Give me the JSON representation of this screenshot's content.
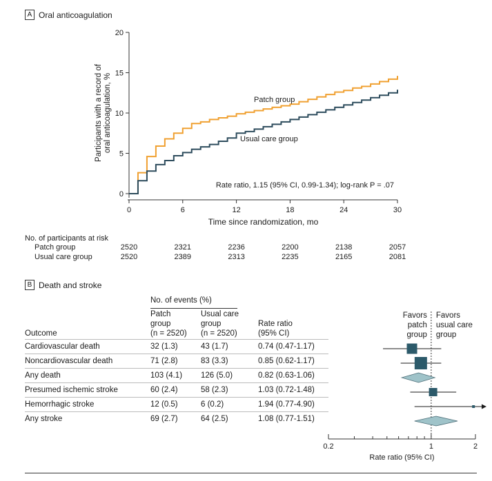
{
  "panel_a": {
    "letter": "A",
    "title": "Oral anticoagulation",
    "chart_data": {
      "type": "line",
      "title": "Oral anticoagulation",
      "xlabel": "Time since randomization, mo",
      "ylabel_lines": [
        "Participants with a record of",
        "oral anticoagulation, %"
      ],
      "xlim": [
        0,
        30
      ],
      "ylim": [
        0,
        20
      ],
      "xticks": [
        0,
        6,
        12,
        18,
        24,
        30
      ],
      "yticks": [
        0,
        5,
        10,
        15,
        20
      ],
      "grid": false,
      "annotation": "Rate ratio, 1.15 (95% CI, 0.99-1.34); log-rank P = .07",
      "series": [
        {
          "name": "Patch group",
          "color": "#f0a030",
          "step": true,
          "x": [
            0,
            1,
            2,
            3,
            4,
            5,
            6,
            7,
            8,
            9,
            10,
            11,
            12,
            13,
            14,
            15,
            16,
            17,
            18,
            19,
            20,
            21,
            22,
            23,
            24,
            25,
            26,
            27,
            28,
            29,
            30
          ],
          "y": [
            0,
            2.6,
            4.6,
            5.9,
            6.8,
            7.5,
            8.1,
            8.7,
            8.9,
            9.2,
            9.4,
            9.6,
            9.9,
            10.1,
            10.3,
            10.5,
            10.7,
            10.9,
            11.1,
            11.4,
            11.7,
            12.0,
            12.3,
            12.6,
            12.8,
            13.1,
            13.3,
            13.6,
            13.9,
            14.2,
            14.6
          ]
        },
        {
          "name": "Usual care group",
          "color": "#2c4b5c",
          "step": true,
          "x": [
            0,
            1,
            2,
            3,
            4,
            5,
            6,
            7,
            8,
            9,
            10,
            11,
            12,
            13,
            14,
            15,
            16,
            17,
            18,
            19,
            20,
            21,
            22,
            23,
            24,
            25,
            26,
            27,
            28,
            29,
            30
          ],
          "y": [
            0,
            1.6,
            2.8,
            3.6,
            4.1,
            4.7,
            5.1,
            5.5,
            5.8,
            6.1,
            6.5,
            6.9,
            7.5,
            7.7,
            8.0,
            8.3,
            8.6,
            8.9,
            9.2,
            9.5,
            9.8,
            10.1,
            10.4,
            10.7,
            11.0,
            11.3,
            11.6,
            11.9,
            12.2,
            12.5,
            12.9
          ]
        }
      ]
    },
    "at_risk": {
      "title": "No. of participants at risk",
      "rows": [
        {
          "label": "Patch group",
          "values": [
            "2520",
            "2321",
            "2236",
            "2200",
            "2138",
            "2057"
          ]
        },
        {
          "label": "Usual care group",
          "values": [
            "2520",
            "2389",
            "2313",
            "2235",
            "2165",
            "2081"
          ]
        }
      ]
    }
  },
  "panel_b": {
    "letter": "B",
    "title": "Death and stroke",
    "table": {
      "events_header": "No. of events (%)",
      "col_outcome": "Outcome",
      "col_patch": [
        "Patch",
        "group",
        "(n = 2520)"
      ],
      "col_usual": [
        "Usual care",
        "group",
        "(n = 2520)"
      ],
      "col_rr": [
        "Rate ratio",
        "(95% CI)"
      ],
      "rows": [
        {
          "outcome": "Cardiovascular death",
          "patch": "32 (1.3)",
          "usual": "43 (1.7)",
          "rr": "0.74 (0.47-1.17)"
        },
        {
          "outcome": "Noncardiovascular death",
          "patch": "71 (2.8)",
          "usual": "83 (3.3)",
          "rr": "0.85 (0.62-1.17)"
        },
        {
          "outcome": "Any death",
          "patch": "103 (4.1)",
          "usual": "126 (5.0)",
          "rr": "0.82 (0.63-1.06)"
        },
        {
          "outcome": "Presumed ischemic stroke",
          "patch": "60 (2.4)",
          "usual": "58 (2.3)",
          "rr": "1.03 (0.72-1.48)"
        },
        {
          "outcome": "Hemorrhagic stroke",
          "patch": "12 (0.5)",
          "usual": "6 (0.2)",
          "rr": "1.94 (0.77-4.90)"
        },
        {
          "outcome": "Any stroke",
          "patch": "69 (2.7)",
          "usual": "64 (2.5)",
          "rr": "1.08 (0.77-1.51)"
        }
      ]
    },
    "forest": {
      "type": "forest",
      "xlabel": "Rate ratio (95% CI)",
      "scale": "log",
      "xlim": [
        0.2,
        2
      ],
      "xtick_labels": [
        "0.2",
        "1",
        "2"
      ],
      "xtick_values": [
        0.2,
        1,
        2
      ],
      "favors_left": [
        "Favors",
        "patch",
        "group"
      ],
      "favors_right": [
        "Favors",
        "usual care",
        "group"
      ],
      "color": "#2c5a6a",
      "diamond_color": "#9fc3c9",
      "points": [
        {
          "estimate": 0.74,
          "low": 0.47,
          "high": 1.17,
          "kind": "square",
          "size": 15
        },
        {
          "estimate": 0.85,
          "low": 0.62,
          "high": 1.17,
          "kind": "square",
          "size": 18
        },
        {
          "estimate": 0.82,
          "low": 0.63,
          "high": 1.06,
          "kind": "diamond"
        },
        {
          "estimate": 1.03,
          "low": 0.72,
          "high": 1.48,
          "kind": "square",
          "size": 12
        },
        {
          "estimate": 1.94,
          "low": 0.77,
          "high": 4.9,
          "kind": "square",
          "size": 4,
          "arrow_right": true
        },
        {
          "estimate": 1.08,
          "low": 0.77,
          "high": 1.51,
          "kind": "diamond"
        }
      ]
    }
  }
}
